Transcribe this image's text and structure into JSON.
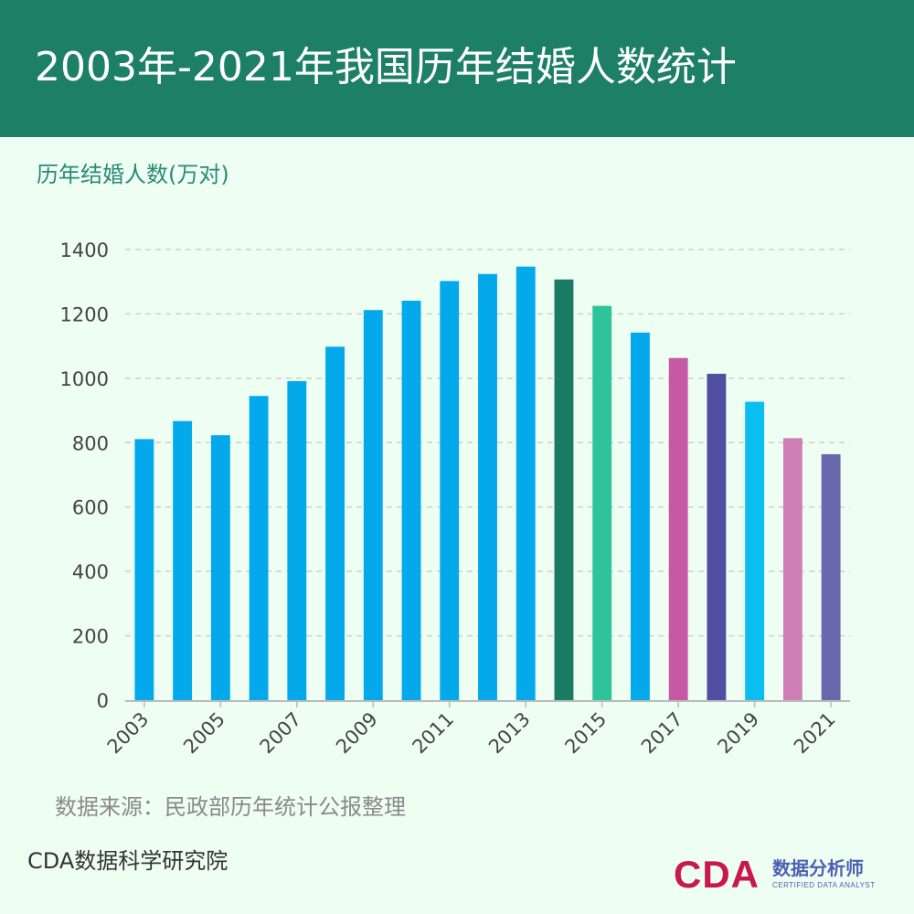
{
  "header": {
    "title": "2003年-2021年我国历年结婚人数统计"
  },
  "footer": {
    "source": "数据来源：民政部历年统计公报整理",
    "org": "CDA数据科学研究院",
    "logo_mark": "CDA",
    "logo_cn": "数据分析师",
    "logo_en": "CERTIFIED DATA ANALYST"
  },
  "chart_data": {
    "type": "bar",
    "title": "2003年-2021年我国历年结婚人数统计",
    "ylabel": "历年结婚人数(万对)",
    "xlabel": "",
    "ylim": [
      0,
      1400
    ],
    "yticks": [
      0,
      200,
      400,
      600,
      800,
      1000,
      1200,
      1400
    ],
    "grid": true,
    "categories": [
      "2003",
      "2004",
      "2005",
      "2006",
      "2007",
      "2008",
      "2009",
      "2010",
      "2011",
      "2012",
      "2013",
      "2014",
      "2015",
      "2016",
      "2017",
      "2018",
      "2019",
      "2020",
      "2021"
    ],
    "xtick_labels": [
      "2003",
      "2005",
      "2007",
      "2009",
      "2011",
      "2013",
      "2015",
      "2017",
      "2019",
      "2021"
    ],
    "values": [
      811,
      867,
      823,
      945,
      991,
      1098,
      1212,
      1241,
      1302,
      1324,
      1347,
      1307,
      1225,
      1142,
      1063,
      1014,
      927,
      814,
      764
    ],
    "colors": [
      "#03a9ea",
      "#03a9ea",
      "#03a9ea",
      "#03a9ea",
      "#03a9ea",
      "#03a9ea",
      "#03a9ea",
      "#03a9ea",
      "#03a9ea",
      "#03a9ea",
      "#03a9ea",
      "#1b7a64",
      "#2fc39c",
      "#03a9ea",
      "#c659a6",
      "#5150a0",
      "#0bbef0",
      "#d07fb6",
      "#6a68ad"
    ]
  }
}
